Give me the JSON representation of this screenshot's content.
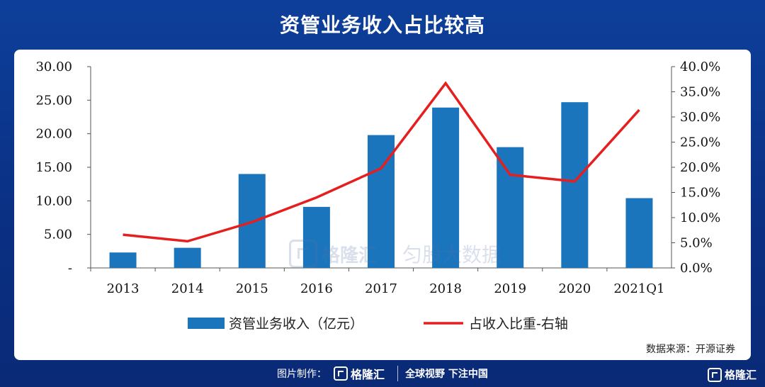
{
  "header": {
    "title": "资管业务收入占比较高"
  },
  "chart_data": {
    "type": "bar",
    "categories": [
      "2013",
      "2014",
      "2015",
      "2016",
      "2017",
      "2018",
      "2019",
      "2020",
      "2021Q1"
    ],
    "series": [
      {
        "name": "资管业务收入（亿元）",
        "type": "bar",
        "axis": "left",
        "color": "#1b75bc",
        "values": [
          2.3,
          3.0,
          14.0,
          9.1,
          19.8,
          23.9,
          18.0,
          24.7,
          10.4
        ]
      },
      {
        "name": "占收入比重-右轴",
        "type": "line",
        "axis": "right",
        "color": "#e61e1e",
        "values": [
          6.6,
          5.3,
          9.1,
          14.0,
          19.8,
          36.7,
          18.5,
          17.2,
          31.4
        ]
      }
    ],
    "left_axis": {
      "ylim": [
        0,
        30
      ],
      "ticks": [
        "-",
        "5.00",
        "10.00",
        "15.00",
        "20.00",
        "25.00",
        "30.00"
      ]
    },
    "right_axis": {
      "ylim": [
        0,
        40
      ],
      "unit": "%",
      "ticks": [
        "0.0%",
        "5.0%",
        "10.0%",
        "15.0%",
        "20.0%",
        "25.0%",
        "30.0%",
        "35.0%",
        "40.0%"
      ]
    },
    "legend": {
      "placement": "bottom",
      "bar_label": "资管业务收入（亿元）",
      "line_label": "占收入比重-右轴"
    },
    "grid": false
  },
  "watermark": {
    "brand": "格隆汇",
    "brand2": "匀股大数据"
  },
  "source": {
    "text": "数据来源：开源证券"
  },
  "footer": {
    "made_by": "图片制作：",
    "logo_text": "格隆汇",
    "slogan": "全球视野 下注中国",
    "corner_logo": "格隆汇"
  }
}
